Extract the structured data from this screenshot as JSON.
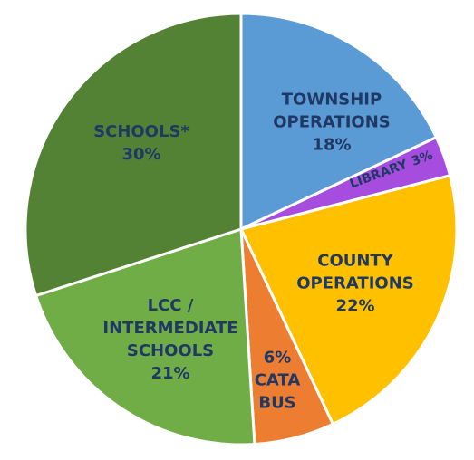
{
  "chart_data": {
    "type": "pie",
    "categories": [
      "TOWNSHIP OPERATIONS",
      "LIBRARY",
      "COUNTY OPERATIONS",
      "CATA BUS",
      "LCC / INTERMEDIATE SCHOOLS",
      "SCHOOLS*"
    ],
    "values": [
      18,
      3,
      22,
      6,
      21,
      30
    ],
    "value_labels": [
      "18%",
      "3%",
      "22%",
      "6%",
      "21%",
      "30%"
    ],
    "colors": [
      "#5b9bd5",
      "#a64de0",
      "#ffc000",
      "#ed7d31",
      "#70ad47",
      "#548235"
    ]
  }
}
